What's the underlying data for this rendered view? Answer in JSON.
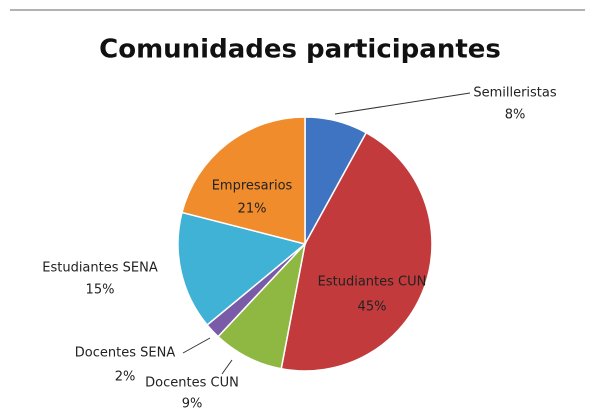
{
  "chart_data": {
    "type": "pie",
    "title": "Comunidades participantes",
    "categories": [
      "Semilleristas",
      "Estudiantes CUN",
      "Docentes CUN",
      "Docentes SENA",
      "Estudiantes SENA",
      "Empresarios"
    ],
    "values": [
      8,
      45,
      9,
      2,
      15,
      21
    ],
    "value_labels": [
      "8%",
      "45%",
      "9%",
      "2%",
      "15%",
      "21%"
    ],
    "colors": [
      "#3f74c2",
      "#c23a3c",
      "#8fb842",
      "#7a5ba8",
      "#40b2d6",
      "#f08c2c"
    ]
  }
}
